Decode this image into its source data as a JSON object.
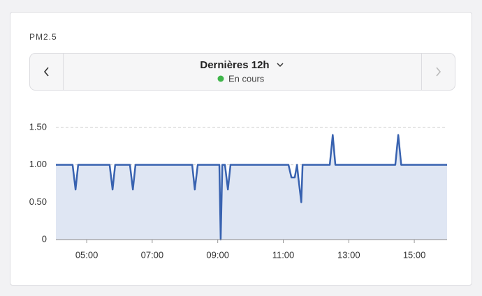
{
  "card": {
    "label": "PM2.5",
    "period": "Dernières 12h",
    "status": "En cours"
  },
  "chart_data": {
    "type": "area",
    "x": [
      4.06,
      4.57,
      4.66,
      4.74,
      5.7,
      5.79,
      5.87,
      6.32,
      6.41,
      6.49,
      8.22,
      8.3,
      8.39,
      9.05,
      9.09,
      9.14,
      9.22,
      9.31,
      9.39,
      11.16,
      11.25,
      11.35,
      11.42,
      11.46,
      11.55,
      11.59,
      12.42,
      12.51,
      12.59,
      14.42,
      14.51,
      14.6,
      16.0
    ],
    "values": [
      1.0,
      1.0,
      0.67,
      1.0,
      1.0,
      0.67,
      1.0,
      1.0,
      0.67,
      1.0,
      1.0,
      0.67,
      1.0,
      1.0,
      0,
      1.0,
      1.0,
      0.67,
      1.0,
      1.0,
      0.83,
      0.83,
      1.0,
      0.83,
      0.5,
      1.0,
      1.0,
      1.4,
      1.0,
      1.0,
      1.4,
      1.0,
      1.0
    ],
    "color": "#3862b0",
    "fill": "#dfe6f3",
    "xlim": [
      4.06,
      16.0
    ],
    "xticks": [
      {
        "value": 5,
        "label": "05:00"
      },
      {
        "value": 7,
        "label": "07:00"
      },
      {
        "value": 9,
        "label": "09:00"
      },
      {
        "value": 11,
        "label": "11:00"
      },
      {
        "value": 13,
        "label": "13:00"
      },
      {
        "value": 15,
        "label": "15:00"
      }
    ],
    "ylim": [
      0,
      1.5
    ],
    "yticks": [
      0,
      {
        "value": 0.5,
        "label": "0.50"
      },
      {
        "value": 1,
        "label": "1.00"
      },
      {
        "value": 1.5,
        "label": "1.50"
      }
    ],
    "grid": true
  }
}
